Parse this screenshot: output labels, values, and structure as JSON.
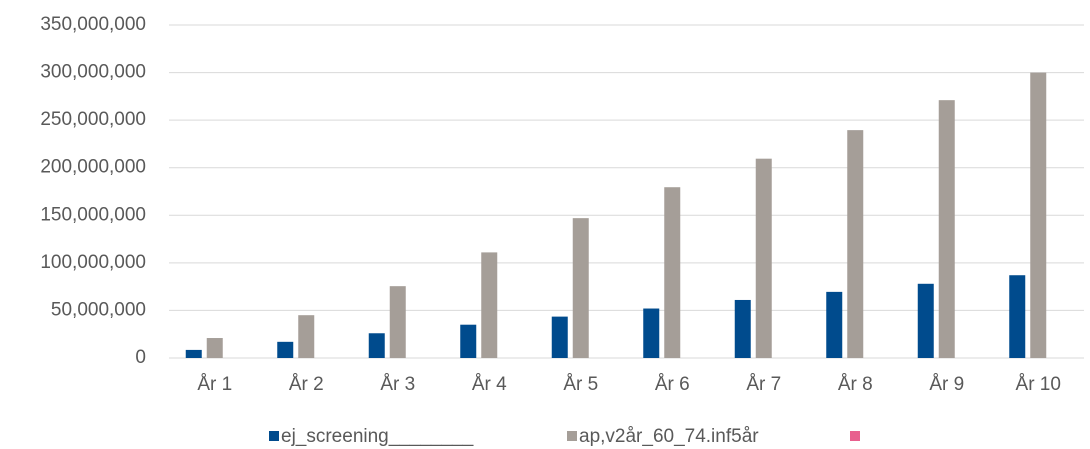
{
  "chart_data": {
    "type": "bar",
    "categories": [
      "År 1",
      "År 2",
      "År 3",
      "År 4",
      "År 5",
      "År 6",
      "År 7",
      "År 8",
      "År 9",
      "År 10"
    ],
    "series": [
      {
        "name": "ej_screening________",
        "color": "#004b8d",
        "values": [
          8500000,
          17000000,
          26000000,
          35000000,
          43500000,
          52000000,
          61000000,
          69500000,
          78000000,
          87000000
        ]
      },
      {
        "name": "ap,v2år_60_74.inf5år",
        "color": "#a59e98",
        "values": [
          21000000,
          45000000,
          75500000,
          111000000,
          147000000,
          179500000,
          209500000,
          239500000,
          271000000,
          300000000
        ]
      },
      {
        "color": "#e8608e",
        "values": [
          null,
          null,
          null,
          null,
          null,
          null,
          null,
          null,
          null,
          null
        ]
      }
    ],
    "ylim": [
      0,
      350000000
    ],
    "yticks": [
      0,
      {
        "value": 50000000,
        "label": "50,000,000"
      },
      {
        "value": 100000000,
        "label": "100,000,000"
      },
      {
        "value": 150000000,
        "label": "150,000,000"
      },
      {
        "value": 200000000,
        "label": "200,000,000"
      },
      {
        "value": 250000000,
        "label": "250,000,000"
      },
      {
        "value": 300000000,
        "label": "300,000,000"
      },
      {
        "value": 350000000,
        "label": "350,000,000"
      }
    ],
    "grid": true
  }
}
